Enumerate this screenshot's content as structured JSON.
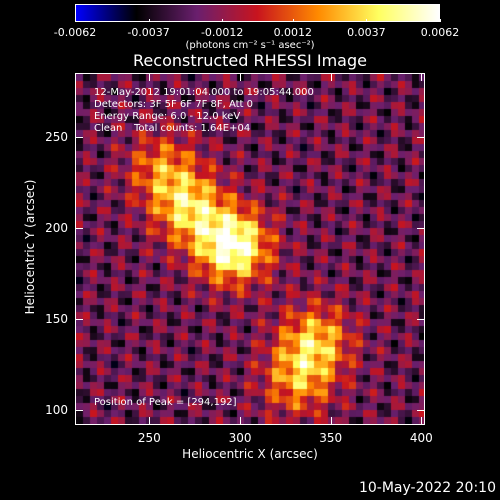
{
  "chart_data": {
    "type": "heatmap",
    "title": "Reconstructed RHESSI Image",
    "xlabel": "Heliocentric X (arcsec)",
    "ylabel": "Heliocentric Y (arcsec)",
    "xlim": [
      209,
      402
    ],
    "ylim": [
      92,
      285
    ],
    "x_ticks": [
      250,
      300,
      350,
      400
    ],
    "y_ticks": [
      100,
      150,
      200,
      250
    ],
    "colorbar": {
      "range": [
        -0.0062,
        0.0062
      ],
      "tick_labels": [
        "-0.0062",
        "-0.0037",
        "-0.0012",
        "0.0012",
        "0.0037",
        "0.0062"
      ],
      "tick_values": [
        -0.0062,
        -0.0037,
        -0.0012,
        0.0012,
        0.0037,
        0.0062
      ],
      "units": "(photons cm⁻² s⁻¹ asec⁻²)",
      "colors": [
        "#0000ff",
        "#000000",
        "#6a1f6e",
        "#c8141e",
        "#ff8a00",
        "#ffff60",
        "#ffffff"
      ]
    },
    "annotations": {
      "time_range": "12-May-2012 19:01:04.000 to 19:05:44.000",
      "detectors": "Detectors: 3F 5F 6F 7F 8F, Att 0",
      "energy": "Energy Range: 6.0 - 12.0 keV",
      "algorithm": "Clean",
      "counts": "Total counts: 1.64E+04",
      "peak": "Position of Peak = [294,192]"
    },
    "sources": [
      {
        "x": 294,
        "y": 192,
        "peak": 1.0
      },
      {
        "x": 270,
        "y": 213,
        "peak": 0.65
      },
      {
        "x": 255,
        "y": 235,
        "peak": 0.45
      },
      {
        "x": 340,
        "y": 140,
        "peak": 0.6
      },
      {
        "x": 330,
        "y": 118,
        "peak": 0.5
      }
    ]
  },
  "footer": {
    "timestamp": "10-May-2022 20:10"
  }
}
